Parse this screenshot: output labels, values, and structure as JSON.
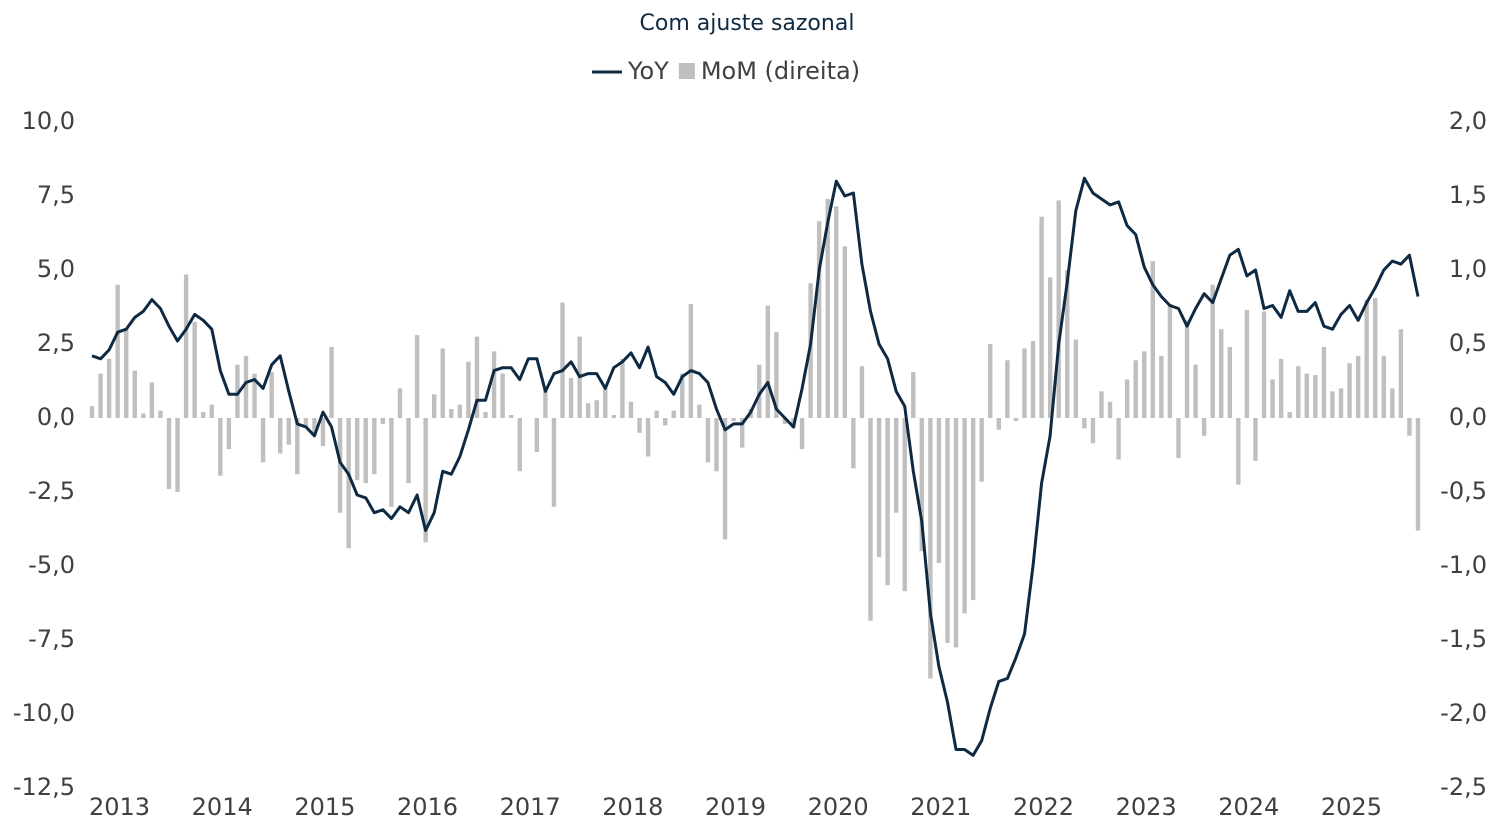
{
  "chart_data": {
    "type": "combo",
    "title": "Com ajuste sazonal",
    "categories": [
      "2013",
      null,
      null,
      null,
      null,
      null,
      null,
      null,
      null,
      null,
      null,
      null,
      "2014",
      null,
      null,
      null,
      null,
      null,
      null,
      null,
      null,
      null,
      null,
      null,
      "2015",
      null,
      null,
      null,
      null,
      null,
      null,
      null,
      null,
      null,
      null,
      null,
      "2016",
      null,
      null,
      null,
      null,
      null,
      null,
      null,
      null,
      null,
      null,
      null,
      "2017",
      null,
      null,
      null,
      null,
      null,
      null,
      null,
      null,
      null,
      null,
      null,
      "2018",
      null,
      null,
      null,
      null,
      null,
      null,
      null,
      null,
      null,
      null,
      null,
      "2019",
      null,
      null,
      null,
      null,
      null,
      null,
      null,
      null,
      null,
      null,
      null,
      "2020",
      null,
      null,
      null,
      null,
      null,
      null,
      null,
      null,
      null,
      null,
      null,
      "2021",
      null,
      null,
      null,
      null,
      null,
      null,
      null,
      null,
      null,
      null,
      null,
      "2022",
      null,
      null,
      null,
      null,
      null,
      null,
      null,
      null,
      null,
      null,
      null,
      "2023",
      null,
      null,
      null,
      null,
      null,
      null,
      null,
      null,
      null,
      null,
      null,
      "2024",
      null,
      null,
      null,
      null,
      null,
      null,
      null,
      null,
      null,
      null,
      null,
      "2025",
      null,
      null,
      null,
      null,
      null,
      null,
      null,
      null,
      null,
      null,
      null
    ],
    "series": [
      {
        "name": "YoY",
        "type": "line",
        "color": "#0e2a42",
        "values": [
          2.1,
          2.0,
          2.3,
          2.9,
          3.0,
          3.4,
          3.6,
          4.0,
          3.7,
          3.1,
          2.6,
          3.0,
          3.5,
          3.3,
          3.0,
          1.6,
          0.8,
          0.8,
          1.2,
          1.3,
          1.0,
          1.8,
          2.1,
          0.9,
          -0.2,
          -0.3,
          -0.6,
          0.2,
          -0.3,
          -1.5,
          -1.9,
          -2.6,
          -2.7,
          -3.2,
          -3.1,
          -3.4,
          -3.0,
          -3.2,
          -2.6,
          -3.8,
          -3.2,
          -1.8,
          -1.9,
          -1.3,
          -0.4,
          0.6,
          0.6,
          1.6,
          1.7,
          1.7,
          1.3,
          2.0,
          2.0,
          0.9,
          1.5,
          1.6,
          1.9,
          1.4,
          1.5,
          1.5,
          1.0,
          1.7,
          1.9,
          2.2,
          1.7,
          2.4,
          1.4,
          1.2,
          0.8,
          1.4,
          1.6,
          1.5,
          1.2,
          0.3,
          -0.4,
          -0.2,
          -0.2,
          0.2,
          0.8,
          1.2,
          0.3,
          0.0,
          -0.3,
          1.0,
          2.5,
          5.0,
          6.6,
          8.0,
          7.5,
          7.6,
          5.2,
          3.6,
          2.5,
          2.0,
          0.9,
          0.4,
          -1.8,
          -3.5,
          -6.6,
          -8.4,
          -9.6,
          -11.2,
          -11.2,
          -11.4,
          -10.9,
          -9.8,
          -8.9,
          -8.8,
          -8.1,
          -7.3,
          -5.0,
          -2.2,
          -0.6,
          2.5,
          4.6,
          7.0,
          8.1,
          7.6,
          7.4,
          7.2,
          7.3,
          6.5,
          6.2,
          5.1,
          4.5,
          4.1,
          3.8,
          3.7,
          3.1,
          3.7,
          4.2,
          3.9,
          4.7,
          5.5,
          5.7,
          4.8,
          5.0,
          3.7,
          3.8,
          3.4,
          4.3,
          3.6,
          3.6,
          3.9,
          3.1,
          3.0,
          3.5,
          3.8,
          3.3,
          3.9,
          4.4,
          5.0,
          5.3,
          5.2,
          5.5,
          4.1
        ]
      },
      {
        "name": "MoM (direita)",
        "type": "bar",
        "axis": "y2",
        "color": "#bfbfbf",
        "values": [
          0.08,
          0.3,
          0.4,
          0.9,
          0.6,
          0.32,
          0.03,
          0.24,
          0.05,
          -0.48,
          -0.5,
          0.97,
          0.65,
          0.04,
          0.09,
          -0.39,
          -0.21,
          0.36,
          0.42,
          0.3,
          -0.3,
          0.31,
          -0.24,
          -0.18,
          -0.38,
          -0.06,
          -0.12,
          -0.19,
          0.48,
          -0.64,
          -0.88,
          -0.42,
          -0.44,
          -0.38,
          -0.04,
          -0.6,
          0.2,
          -0.44,
          0.56,
          -0.84,
          0.16,
          0.47,
          0.06,
          0.09,
          0.38,
          0.55,
          0.04,
          0.45,
          0.3,
          0.02,
          -0.36,
          0.0,
          -0.23,
          0.19,
          -0.6,
          0.78,
          0.27,
          0.55,
          0.1,
          0.12,
          0.21,
          0.02,
          0.4,
          0.11,
          -0.1,
          -0.26,
          0.05,
          -0.05,
          0.05,
          0.3,
          0.77,
          0.09,
          -0.3,
          -0.36,
          -0.82,
          -0.02,
          -0.2,
          0.06,
          0.36,
          0.76,
          0.58,
          -0.04,
          -0.07,
          -0.21,
          0.91,
          1.33,
          1.48,
          1.43,
          1.16,
          -0.34,
          0.35,
          -1.37,
          -0.94,
          -1.13,
          -0.64,
          -1.17,
          0.31,
          -0.9,
          -1.76,
          -0.98,
          -1.52,
          -1.55,
          -1.32,
          -1.23,
          -0.43,
          0.5,
          -0.08,
          0.39,
          -0.02,
          0.47,
          0.52,
          1.36,
          0.95,
          1.47,
          1.0,
          0.53,
          -0.07,
          -0.17,
          0.18,
          0.11,
          -0.28,
          0.26,
          0.39,
          0.45,
          1.06,
          0.42,
          0.77,
          -0.27,
          0.66,
          0.36,
          -0.12,
          0.9,
          0.6,
          0.48,
          -0.45,
          0.73,
          -0.29,
          0.72,
          0.26,
          0.4,
          0.04,
          0.35,
          0.3,
          0.29,
          0.48,
          0.18,
          0.2,
          0.37,
          0.42,
          0.8,
          0.81,
          0.42,
          0.2,
          0.6,
          -0.12,
          -0.76
        ]
      }
    ],
    "ylim": [
      -12.5,
      10
    ],
    "yticks": [
      {
        "value": 10,
        "label": "10,0"
      },
      {
        "value": 7.5,
        "label": "7,5"
      },
      {
        "value": 5,
        "label": "5,0"
      },
      {
        "value": 2.5,
        "label": "2,5"
      },
      {
        "value": 0,
        "label": "0,0"
      },
      {
        "value": -2.5,
        "label": "-2,5"
      },
      {
        "value": -5,
        "label": "-5,0"
      },
      {
        "value": -7.5,
        "label": "-7,5"
      },
      {
        "value": -10,
        "label": "-10,0"
      },
      {
        "value": -12.5,
        "label": "-12,5"
      }
    ],
    "y2lim": [
      -2.5,
      2
    ],
    "y2ticks": [
      {
        "value": 2,
        "label": "2,0"
      },
      {
        "value": 1.5,
        "label": "1,5"
      },
      {
        "value": 1,
        "label": "1,0"
      },
      {
        "value": 0.5,
        "label": "0,5"
      },
      {
        "value": 0,
        "label": "0,0"
      },
      {
        "value": -0.5,
        "label": "-0,5"
      },
      {
        "value": -1,
        "label": "-1,0"
      },
      {
        "value": -1.5,
        "label": "-1,5"
      },
      {
        "value": -2,
        "label": "-2,0"
      },
      {
        "value": -2.5,
        "label": "-2,5"
      }
    ],
    "grid": false
  }
}
